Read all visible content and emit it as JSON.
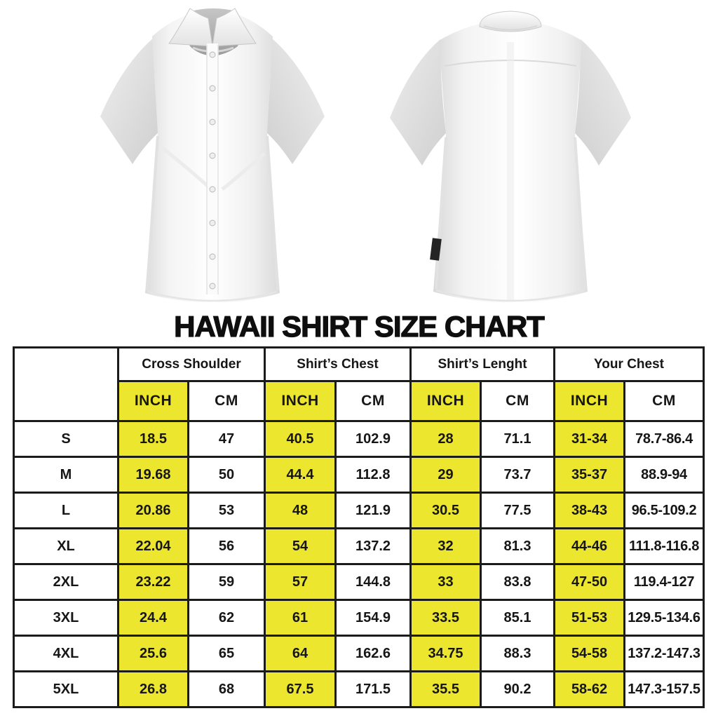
{
  "title": "HAWAII SHIRT SIZE CHART",
  "images": {
    "front_shirt": "white short-sleeve button-up shirt, front view",
    "back_shirt": "white short-sleeve button-up shirt, back view"
  },
  "colors": {
    "highlight_yellow": "#ece62f",
    "border_black": "#1b1b1b",
    "text_black": "#161616",
    "background": "#ffffff"
  },
  "chart_data": {
    "type": "table",
    "title": "HAWAII SHIRT SIZE CHART",
    "size_column_header": "",
    "column_groups": [
      "Cross Shoulder",
      "Shirt’s Chest",
      "Shirt’s Lenght",
      "Your Chest"
    ],
    "sub_columns": [
      "INCH",
      "CM"
    ],
    "rows": [
      {
        "size": "S",
        "values": [
          "18.5",
          "47",
          "40.5",
          "102.9",
          "28",
          "71.1",
          "31-34",
          "78.7-86.4"
        ]
      },
      {
        "size": "M",
        "values": [
          "19.68",
          "50",
          "44.4",
          "112.8",
          "29",
          "73.7",
          "35-37",
          "88.9-94"
        ]
      },
      {
        "size": "L",
        "values": [
          "20.86",
          "53",
          "48",
          "121.9",
          "30.5",
          "77.5",
          "38-43",
          "96.5-109.2"
        ]
      },
      {
        "size": "XL",
        "values": [
          "22.04",
          "56",
          "54",
          "137.2",
          "32",
          "81.3",
          "44-46",
          "111.8-116.8"
        ]
      },
      {
        "size": "2XL",
        "values": [
          "23.22",
          "59",
          "57",
          "144.8",
          "33",
          "83.8",
          "47-50",
          "119.4-127"
        ]
      },
      {
        "size": "3XL",
        "values": [
          "24.4",
          "62",
          "61",
          "154.9",
          "33.5",
          "85.1",
          "51-53",
          "129.5-134.6"
        ]
      },
      {
        "size": "4XL",
        "values": [
          "25.6",
          "65",
          "64",
          "162.6",
          "34.75",
          "88.3",
          "54-58",
          "137.2-147.3"
        ]
      },
      {
        "size": "5XL",
        "values": [
          "26.8",
          "68",
          "67.5",
          "171.5",
          "35.5",
          "90.2",
          "58-62",
          "147.3-157.5"
        ]
      }
    ]
  }
}
